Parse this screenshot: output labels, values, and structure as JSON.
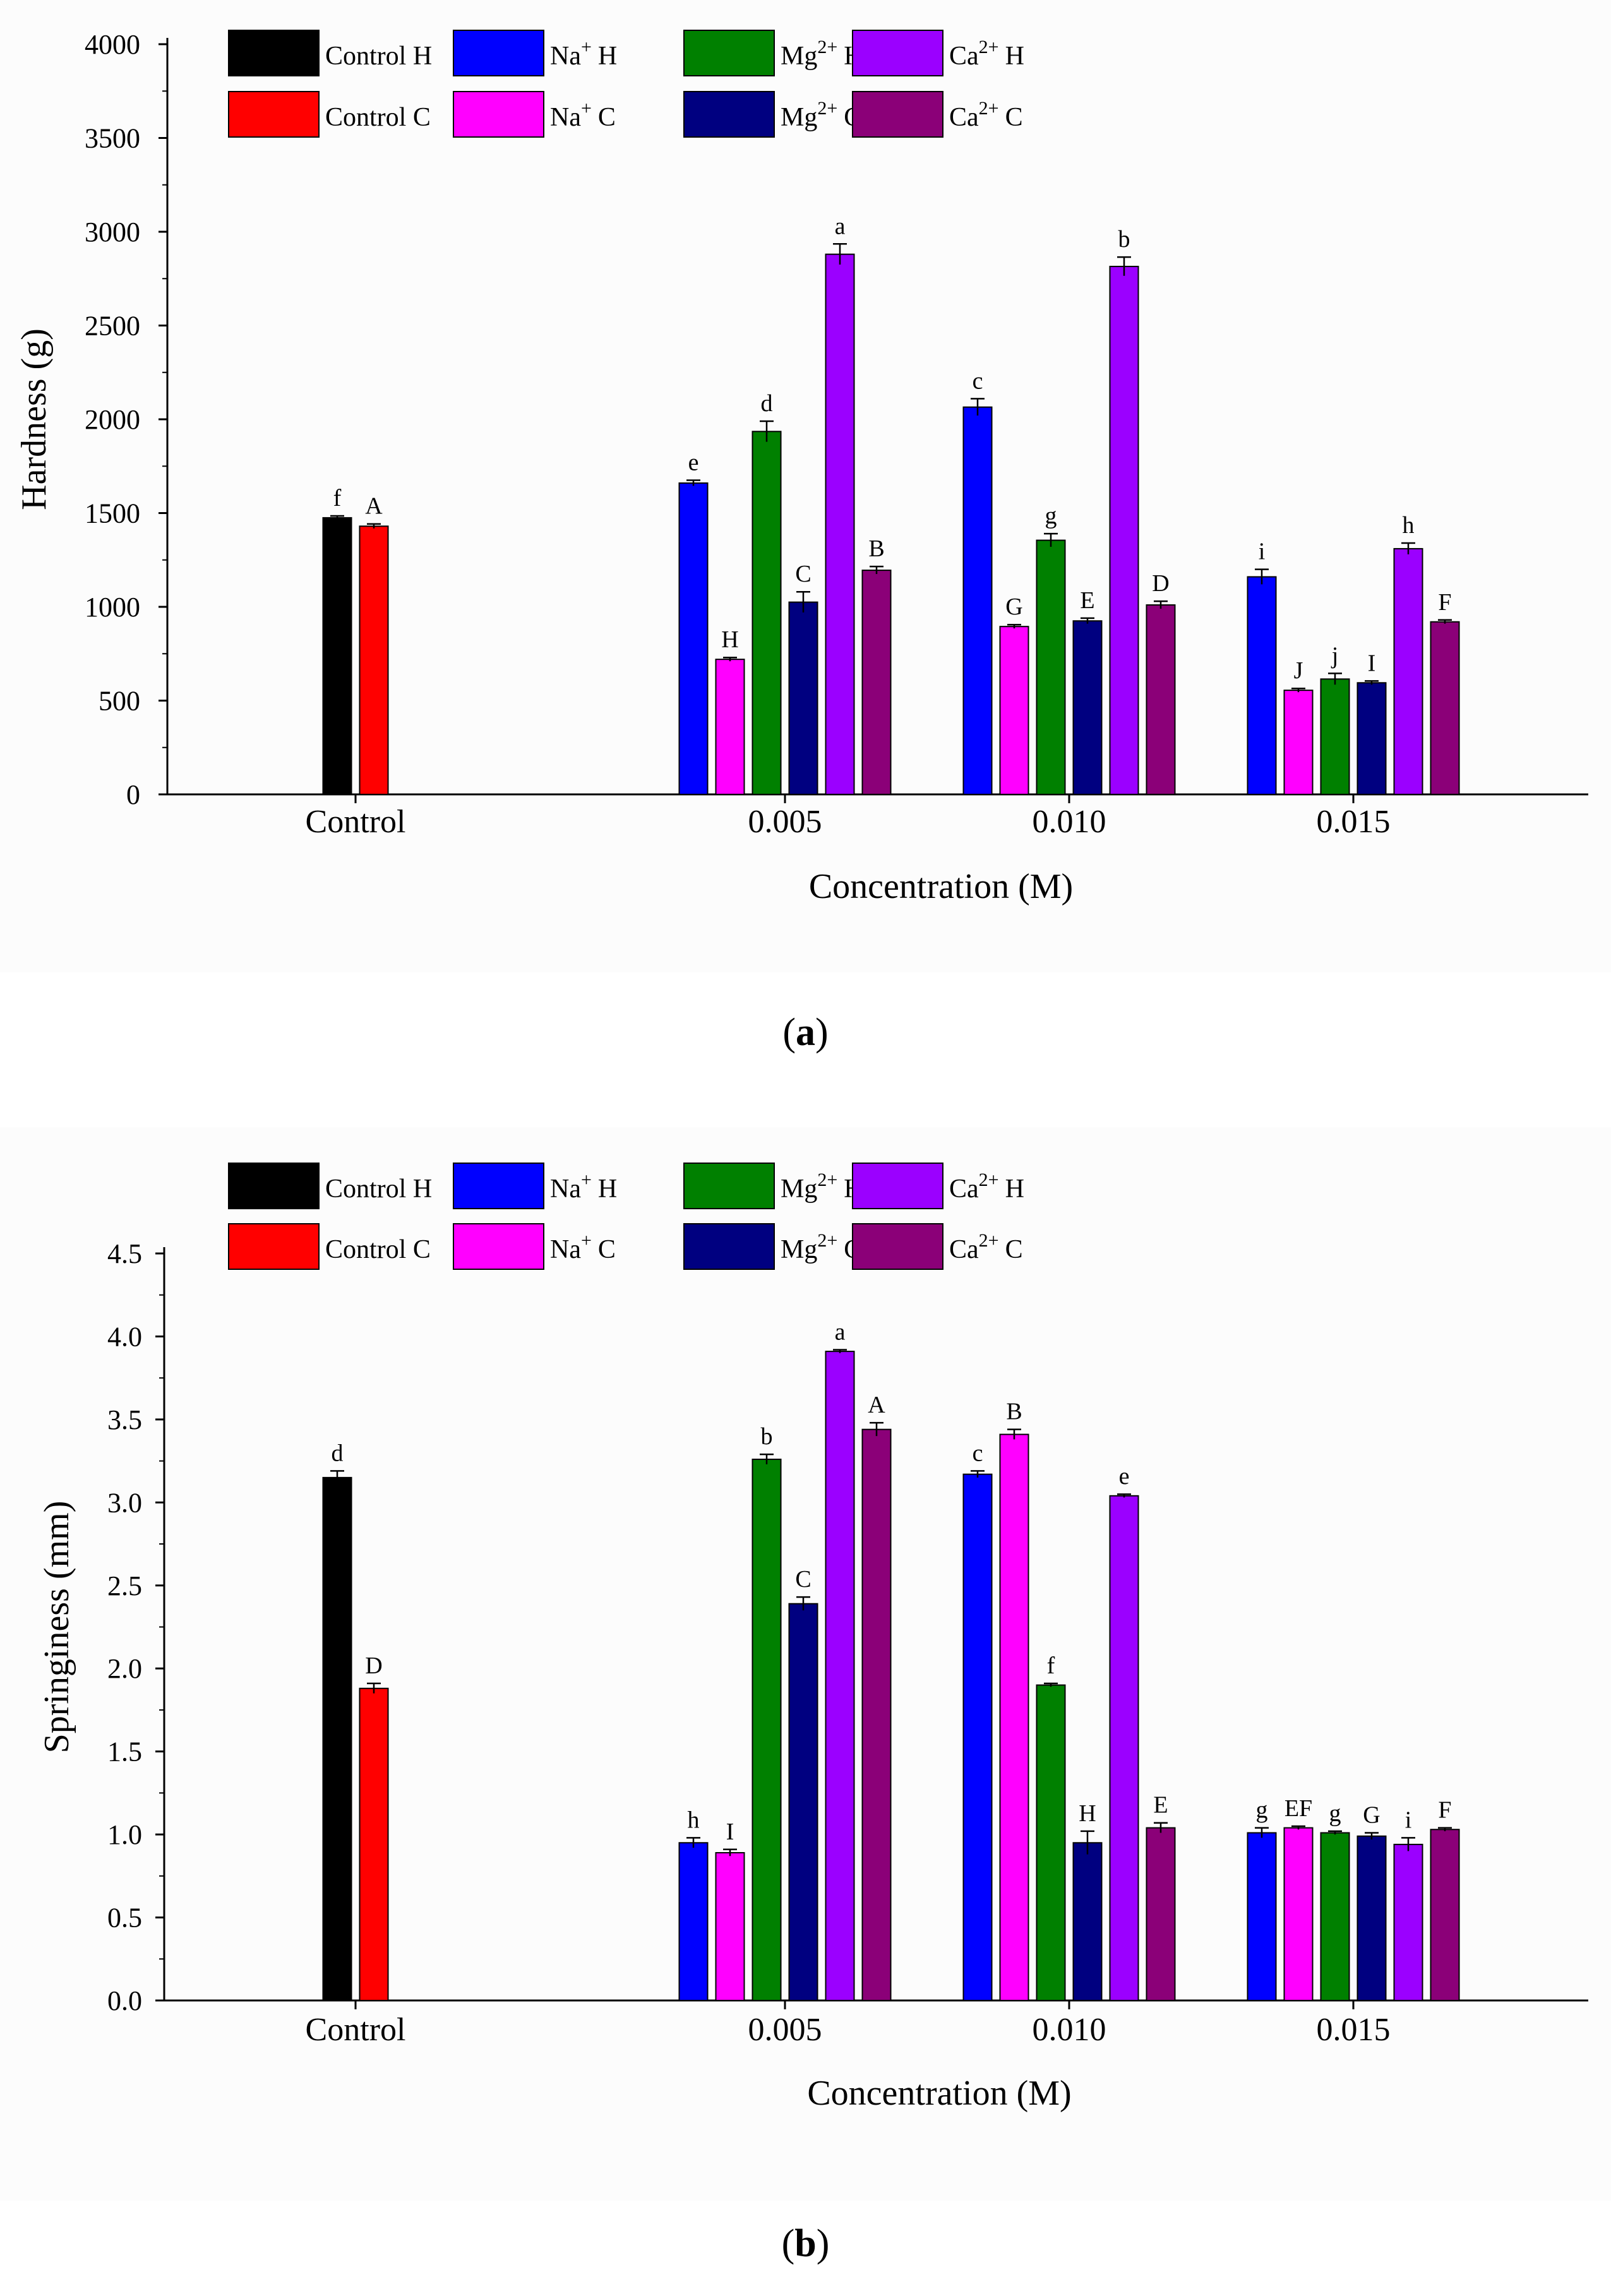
{
  "series_labels": {
    "control_h": {
      "base": "Control H",
      "sup": "",
      "suffix": ""
    },
    "na_h": {
      "base": "Na",
      "sup": "+",
      "suffix": "H"
    },
    "mg_h": {
      "base": "Mg",
      "sup": "2+",
      "suffix": "H"
    },
    "ca_h": {
      "base": "Ca",
      "sup": "2+",
      "suffix": "H"
    },
    "control_c": {
      "base": "Control C",
      "sup": "",
      "suffix": ""
    },
    "na_c": {
      "base": "Na",
      "sup": "+",
      "suffix": "C"
    },
    "mg_c": {
      "base": "Mg",
      "sup": "2+",
      "suffix": "C"
    },
    "ca_c": {
      "base": "Ca",
      "sup": "2+",
      "suffix": "C"
    }
  },
  "colors": {
    "control_h": "#000000",
    "na_h": "#0000ff",
    "mg_h": "#008000",
    "ca_h": "#9b00ff",
    "control_c": "#ff0000",
    "na_c": "#ff00ff",
    "mg_c": "#000080",
    "ca_c": "#8b0078"
  },
  "chart_data": [
    {
      "id": "a",
      "panel_label": "a",
      "type": "bar",
      "xlabel": "Concentration (M)",
      "ylabel": "Hardness (g)",
      "ylim": [
        0,
        4000
      ],
      "yticks": [
        0,
        500,
        1000,
        1500,
        2000,
        2500,
        3000,
        3500,
        4000
      ],
      "ytick_labels": [
        "0",
        "500",
        "1000",
        "1500",
        "2000",
        "2500",
        "3000",
        "3500",
        "4000"
      ],
      "categories": [
        "Control",
        "0.005",
        "0.010",
        "0.015"
      ],
      "groups": [
        {
          "category": "Control",
          "bars": [
            {
              "series": "control_h",
              "value": 1475,
              "error": 10,
              "letter": "f"
            },
            {
              "series": "control_c",
              "value": 1430,
              "error": 12,
              "letter": "A"
            }
          ]
        },
        {
          "category": "0.005",
          "bars": [
            {
              "series": "na_h",
              "value": 1660,
              "error": 15,
              "letter": "e"
            },
            {
              "series": "na_c",
              "value": 720,
              "error": 10,
              "letter": "H"
            },
            {
              "series": "mg_h",
              "value": 1935,
              "error": 55,
              "letter": "d"
            },
            {
              "series": "mg_c",
              "value": 1025,
              "error": 55,
              "letter": "C"
            },
            {
              "series": "ca_h",
              "value": 2880,
              "error": 55,
              "letter": "a"
            },
            {
              "series": "ca_c",
              "value": 1195,
              "error": 20,
              "letter": "B"
            }
          ]
        },
        {
          "category": "0.010",
          "bars": [
            {
              "series": "na_h",
              "value": 2065,
              "error": 45,
              "letter": "c"
            },
            {
              "series": "na_c",
              "value": 895,
              "error": 10,
              "letter": "G"
            },
            {
              "series": "mg_h",
              "value": 1355,
              "error": 35,
              "letter": "g"
            },
            {
              "series": "mg_c",
              "value": 925,
              "error": 15,
              "letter": "E"
            },
            {
              "series": "ca_h",
              "value": 2815,
              "error": 50,
              "letter": "b"
            },
            {
              "series": "ca_c",
              "value": 1010,
              "error": 20,
              "letter": "D"
            }
          ]
        },
        {
          "category": "0.015",
          "bars": [
            {
              "series": "na_h",
              "value": 1160,
              "error": 40,
              "letter": "i"
            },
            {
              "series": "na_c",
              "value": 555,
              "error": 10,
              "letter": "J"
            },
            {
              "series": "mg_h",
              "value": 615,
              "error": 30,
              "letter": "j"
            },
            {
              "series": "mg_c",
              "value": 595,
              "error": 10,
              "letter": "I"
            },
            {
              "series": "ca_h",
              "value": 1310,
              "error": 30,
              "letter": "h"
            },
            {
              "series": "ca_c",
              "value": 920,
              "error": 10,
              "letter": "F"
            }
          ]
        }
      ]
    },
    {
      "id": "b",
      "panel_label": "b",
      "type": "bar",
      "xlabel": "Concentration (M)",
      "ylabel": "Springiness (mm)",
      "ylim": [
        0,
        4.5
      ],
      "yticks": [
        0,
        0.5,
        1.0,
        1.5,
        2.0,
        2.5,
        3.0,
        3.5,
        4.0,
        4.5
      ],
      "ytick_labels": [
        "0.0",
        "0.5",
        "1.0",
        "1.5",
        "2.0",
        "2.5",
        "3.0",
        "3.5",
        "4.0",
        "4.5"
      ],
      "categories": [
        "Control",
        "0.005",
        "0.010",
        "0.015"
      ],
      "groups": [
        {
          "category": "Control",
          "bars": [
            {
              "series": "control_h",
              "value": 3.15,
              "error": 0.04,
              "letter": "d"
            },
            {
              "series": "control_c",
              "value": 1.88,
              "error": 0.03,
              "letter": "D"
            }
          ]
        },
        {
          "category": "0.005",
          "bars": [
            {
              "series": "na_h",
              "value": 0.95,
              "error": 0.03,
              "letter": "h"
            },
            {
              "series": "na_c",
              "value": 0.89,
              "error": 0.02,
              "letter": "I"
            },
            {
              "series": "mg_h",
              "value": 3.26,
              "error": 0.03,
              "letter": "b"
            },
            {
              "series": "mg_c",
              "value": 2.39,
              "error": 0.04,
              "letter": "C"
            },
            {
              "series": "ca_h",
              "value": 3.91,
              "error": 0.01,
              "letter": "a"
            },
            {
              "series": "ca_c",
              "value": 3.44,
              "error": 0.04,
              "letter": "A"
            }
          ]
        },
        {
          "category": "0.010",
          "bars": [
            {
              "series": "na_h",
              "value": 3.17,
              "error": 0.02,
              "letter": "c"
            },
            {
              "series": "na_c",
              "value": 3.41,
              "error": 0.03,
              "letter": "B"
            },
            {
              "series": "mg_h",
              "value": 1.9,
              "error": 0.01,
              "letter": "f"
            },
            {
              "series": "mg_c",
              "value": 0.95,
              "error": 0.07,
              "letter": "H"
            },
            {
              "series": "ca_h",
              "value": 3.04,
              "error": 0.01,
              "letter": "e"
            },
            {
              "series": "ca_c",
              "value": 1.04,
              "error": 0.03,
              "letter": "E"
            }
          ]
        },
        {
          "category": "0.015",
          "bars": [
            {
              "series": "na_h",
              "value": 1.01,
              "error": 0.03,
              "letter": "g"
            },
            {
              "series": "na_c",
              "value": 1.04,
              "error": 0.01,
              "letter": "EF"
            },
            {
              "series": "mg_h",
              "value": 1.01,
              "error": 0.01,
              "letter": "g"
            },
            {
              "series": "mg_c",
              "value": 0.99,
              "error": 0.02,
              "letter": "G"
            },
            {
              "series": "ca_h",
              "value": 0.94,
              "error": 0.04,
              "letter": "i"
            },
            {
              "series": "ca_c",
              "value": 1.03,
              "error": 0.01,
              "letter": "F"
            }
          ]
        }
      ]
    }
  ]
}
